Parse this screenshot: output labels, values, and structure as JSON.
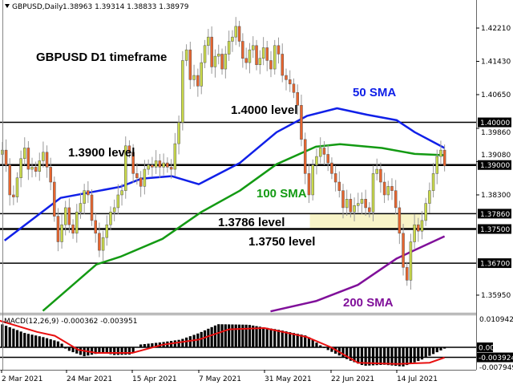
{
  "header": {
    "symbol_info": "GBPUSD,Daily",
    "ohlc": "1.38963 1.39314 1.38833 1.38979"
  },
  "colors": {
    "bull": "#c9d94a",
    "bear": "#e8652e",
    "sma50": "#1020e8",
    "sma100": "#139a13",
    "sma200": "#80109a",
    "signal": "#e81010",
    "zone": "#f8f4c8"
  },
  "chart_data": {
    "type": "candlestick",
    "title": "GBPUSD D1 timeframe",
    "ylim": [
      1.3557,
      1.4287
    ],
    "price_ticks": [
      "1.42210",
      "1.41430",
      "1.40650",
      "1.39860",
      "1.39080",
      "1.38300",
      "1.35950"
    ],
    "x_ticks": [
      {
        "date": "2021-03-02",
        "label": "2 Mar 2021"
      },
      {
        "date": "2021-03-24",
        "label": "24 Mar 2021"
      },
      {
        "date": "2021-04-15",
        "label": "15 Apr 2021"
      },
      {
        "date": "2021-05-07",
        "label": "7 May 2021"
      },
      {
        "date": "2021-05-31",
        "label": "31 May 2021"
      },
      {
        "date": "2021-06-22",
        "label": "22 Jun 2021"
      },
      {
        "date": "2021-07-14",
        "label": "14 Jul 2021"
      }
    ],
    "first_open": 1.3915,
    "closes": [
      1.3925,
      1.3935,
      1.39,
      1.383,
      1.3825,
      1.387,
      1.3915,
      1.394,
      1.389,
      1.3895,
      1.3885,
      1.391,
      1.393,
      1.3895,
      1.386,
      1.378,
      1.372,
      1.376,
      1.38,
      1.376,
      1.374,
      1.379,
      1.381,
      1.384,
      1.383,
      1.377,
      1.374,
      1.37,
      1.373,
      1.376,
      1.379,
      1.38,
      1.383,
      1.384,
      1.3945,
      1.393,
      1.388,
      1.387,
      1.385,
      1.389,
      1.39,
      1.3895,
      1.391,
      1.3895,
      1.3905,
      1.3895,
      1.389,
      1.395,
      1.4,
      1.4145,
      1.417,
      1.41,
      1.411,
      1.4085,
      1.414,
      1.418,
      1.42,
      1.413,
      1.4155,
      1.416,
      1.4125,
      1.416,
      1.419,
      1.42,
      1.4225,
      1.419,
      1.415,
      1.414,
      1.417,
      1.418,
      1.4135,
      1.415,
      1.4175,
      1.4145,
      1.4125,
      1.418,
      1.416,
      1.411,
      1.41,
      1.409,
      1.407,
      1.404,
      1.396,
      1.388,
      1.383,
      1.39,
      1.392,
      1.394,
      1.3925,
      1.3905,
      1.388,
      1.386,
      1.384,
      1.38,
      1.382,
      1.379,
      1.3805,
      1.381,
      1.382,
      1.38,
      1.379,
      1.388,
      1.389,
      1.386,
      1.383,
      1.385,
      1.384,
      1.38,
      1.374,
      1.366,
      1.363,
      1.372,
      1.376,
      1.3745,
      1.377,
      1.381,
      1.384,
      1.388,
      1.392,
      1.3935,
      1.3898
    ],
    "date_range": [
      "2021-03-01",
      "2021-07-30"
    ],
    "sma50": [
      [
        "2021-03-03",
        1.3723
      ],
      [
        "2021-03-22",
        1.3823
      ],
      [
        "2021-04-11",
        1.3849
      ],
      [
        "2021-04-18",
        1.3868
      ],
      [
        "2021-04-28",
        1.3874
      ],
      [
        "2021-05-07",
        1.3855
      ],
      [
        "2021-05-22",
        1.3905
      ],
      [
        "2021-06-04",
        1.3977
      ],
      [
        "2021-06-14",
        1.4015
      ],
      [
        "2021-06-24",
        1.4033
      ],
      [
        "2021-07-04",
        1.4018
      ],
      [
        "2021-07-14",
        1.4005
      ],
      [
        "2021-07-20",
        1.3977
      ],
      [
        "2021-07-30",
        1.394
      ]
    ],
    "sma100": [
      [
        "2021-03-16",
        1.3558
      ],
      [
        "2021-04-03",
        1.3667
      ],
      [
        "2021-04-11",
        1.3685
      ],
      [
        "2021-04-25",
        1.3727
      ],
      [
        "2021-05-08",
        1.379
      ],
      [
        "2021-05-22",
        1.384
      ],
      [
        "2021-06-04",
        1.3902
      ],
      [
        "2021-06-17",
        1.3943
      ],
      [
        "2021-06-25",
        1.3949
      ],
      [
        "2021-07-09",
        1.394
      ],
      [
        "2021-07-20",
        1.3926
      ],
      [
        "2021-07-30",
        1.3923
      ]
    ],
    "sma200": [
      [
        "2021-06-02",
        1.3557
      ],
      [
        "2021-06-17",
        1.3581
      ],
      [
        "2021-07-01",
        1.3619
      ],
      [
        "2021-07-14",
        1.3681
      ],
      [
        "2021-07-30",
        1.3733
      ]
    ],
    "levels": [
      {
        "price": 1.4,
        "tag": "1.40000",
        "thick": false
      },
      {
        "price": 1.39,
        "tag": "1.39000",
        "thick": true
      },
      {
        "price": 1.3786,
        "tag": "1.37860",
        "thick": false
      },
      {
        "price": 1.375,
        "tag": "1.37500",
        "thick": true
      },
      {
        "price": 1.367,
        "tag": "1.36700",
        "thick": false
      }
    ],
    "zone": {
      "from": 1.375,
      "to": 1.3786,
      "start": "2021-06-15",
      "end": "2021-07-22"
    },
    "annotations": [
      {
        "text": "GBPUSD D1 timeframe",
        "color": "#000000"
      },
      {
        "text": "1.4000 level",
        "color": "#000000"
      },
      {
        "text": "50 SMA",
        "color": "#1020e8"
      },
      {
        "text": "1.3900 level",
        "color": "#000000"
      },
      {
        "text": "100 SMA",
        "color": "#139a13"
      },
      {
        "text": "1.3786 level",
        "color": "#000000"
      },
      {
        "text": "1.3750 level",
        "color": "#000000"
      },
      {
        "text": "200 SMA",
        "color": "#80109a"
      }
    ],
    "macd": {
      "label": "MACD(12,26,9) -0.000362 -0.003951",
      "ticks": [
        "0.010942",
        "-0.007949"
      ],
      "zero_tag": "0.00",
      "level_tag": "-0.003924",
      "level": -0.003924,
      "histogram": [
        [
          "2021-03-01",
          0.0095
        ],
        [
          "2021-03-10",
          0.0055
        ],
        [
          "2021-03-16",
          0.004
        ],
        [
          "2021-03-22",
          0.002
        ],
        [
          "2021-03-24",
          -0.001
        ],
        [
          "2021-03-30",
          -0.0035
        ],
        [
          "2021-04-05",
          -0.002
        ],
        [
          "2021-04-09",
          -0.003
        ],
        [
          "2021-04-15",
          -0.0028
        ],
        [
          "2021-04-17",
          0.001
        ],
        [
          "2021-04-25",
          0.002
        ],
        [
          "2021-05-01",
          0.003
        ],
        [
          "2021-05-07",
          0.0055
        ],
        [
          "2021-05-14",
          0.009
        ],
        [
          "2021-05-25",
          0.0088
        ],
        [
          "2021-06-04",
          0.007
        ],
        [
          "2021-06-14",
          0.0045
        ],
        [
          "2021-06-20",
          -0.0005
        ],
        [
          "2021-06-28",
          -0.005
        ],
        [
          "2021-07-03",
          -0.0072
        ],
        [
          "2021-07-10",
          -0.0068
        ],
        [
          "2021-07-16",
          -0.0075
        ],
        [
          "2021-07-22",
          -0.005
        ],
        [
          "2021-07-30",
          -0.0005
        ]
      ],
      "signal": [
        [
          "2021-03-01",
          0.0105
        ],
        [
          "2021-03-14",
          0.006
        ],
        [
          "2021-03-20",
          0.0045
        ],
        [
          "2021-03-28",
          -0.001
        ],
        [
          "2021-04-03",
          -0.0022
        ],
        [
          "2021-04-15",
          -0.0022
        ],
        [
          "2021-04-25",
          0.001
        ],
        [
          "2021-05-07",
          0.003
        ],
        [
          "2021-05-18",
          0.007
        ],
        [
          "2021-05-31",
          0.0075
        ],
        [
          "2021-06-14",
          0.004
        ],
        [
          "2021-06-22",
          0.0
        ],
        [
          "2021-07-01",
          -0.006
        ],
        [
          "2021-07-14",
          -0.0065
        ],
        [
          "2021-07-25",
          -0.006
        ],
        [
          "2021-07-30",
          -0.004
        ]
      ]
    }
  }
}
